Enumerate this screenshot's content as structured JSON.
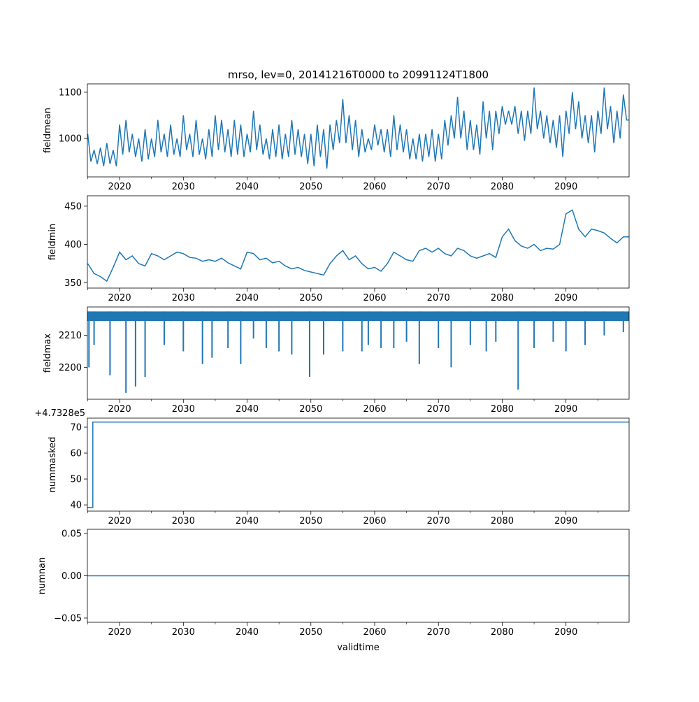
{
  "chart_data": [
    {
      "type": "line",
      "title": "mrso, lev=0, 20141216T0000 to 20991124T1800",
      "ylabel": "fieldmean",
      "xlim": [
        2014.95,
        2099.9
      ],
      "ylim": [
        917,
        1118
      ],
      "yticks": [
        1000,
        1100
      ],
      "x_start": 2015,
      "x_step": 0.5,
      "values": [
        1010,
        950,
        975,
        945,
        980,
        940,
        990,
        945,
        975,
        940,
        1030,
        965,
        1040,
        970,
        1010,
        960,
        1000,
        950,
        1020,
        955,
        1000,
        960,
        1040,
        970,
        1010,
        960,
        1030,
        965,
        1000,
        960,
        1050,
        975,
        1010,
        960,
        1040,
        965,
        1000,
        955,
        1020,
        960,
        1050,
        975,
        1040,
        970,
        1020,
        960,
        1040,
        965,
        1030,
        960,
        1010,
        970,
        1060,
        975,
        1030,
        965,
        1000,
        955,
        1020,
        960,
        1030,
        955,
        1010,
        960,
        1040,
        965,
        1020,
        960,
        1010,
        945,
        1010,
        940,
        1030,
        960,
        1020,
        935,
        1030,
        975,
        1040,
        990,
        1085,
        990,
        1050,
        975,
        1040,
        960,
        1020,
        970,
        1000,
        975,
        1030,
        985,
        1020,
        970,
        1020,
        960,
        1050,
        975,
        1030,
        970,
        1020,
        955,
        1000,
        955,
        1010,
        950,
        1010,
        960,
        1020,
        950,
        1010,
        955,
        1040,
        985,
        1050,
        1000,
        1090,
        1000,
        1060,
        975,
        1040,
        975,
        1030,
        965,
        1080,
        1000,
        1060,
        975,
        1060,
        1010,
        1070,
        1030,
        1060,
        1030,
        1070,
        1010,
        1060,
        995,
        1060,
        1010,
        1110,
        1020,
        1060,
        1000,
        1050,
        990,
        1040,
        980,
        1050,
        960,
        1060,
        1010,
        1100,
        1020,
        1080,
        1000,
        1050,
        990,
        1050,
        970,
        1060,
        1010,
        1110,
        1020,
        1070,
        990,
        1060,
        1000,
        1095,
        1040
      ]
    },
    {
      "type": "line",
      "ylabel": "fieldmin",
      "xlim": [
        2014.95,
        2099.9
      ],
      "ylim": [
        343,
        463.6
      ],
      "yticks": [
        350,
        400,
        450
      ],
      "x_start": 2015,
      "x_step": 1,
      "values": [
        375,
        362,
        358,
        352,
        370,
        390,
        380,
        385,
        375,
        372,
        388,
        385,
        380,
        385,
        390,
        388,
        383,
        382,
        378,
        380,
        378,
        382,
        376,
        372,
        368,
        390,
        388,
        380,
        382,
        376,
        378,
        372,
        368,
        370,
        366,
        364,
        362,
        360,
        375,
        385,
        392,
        380,
        385,
        375,
        368,
        370,
        365,
        375,
        390,
        385,
        380,
        378,
        392,
        395,
        390,
        395,
        388,
        385,
        395,
        392,
        385,
        382,
        385,
        388,
        383,
        410,
        420,
        405,
        398,
        395,
        400,
        392,
        395,
        394,
        400,
        440,
        445,
        420,
        410,
        420,
        418,
        415,
        408,
        402,
        410
      ]
    },
    {
      "type": "line",
      "ylabel": "fieldmax",
      "xlim": [
        2014.95,
        2099.9
      ],
      "ylim": [
        2190,
        2218.9
      ],
      "yticks": [
        2200,
        2210
      ],
      "upper": 2217.5,
      "band_floor": 2214.5,
      "dips": [
        [
          2015.2,
          2200
        ],
        [
          2016,
          2207
        ],
        [
          2018.5,
          2197.5
        ],
        [
          2021,
          2192
        ],
        [
          2022.5,
          2194
        ],
        [
          2024,
          2197
        ],
        [
          2027,
          2207
        ],
        [
          2030,
          2205
        ],
        [
          2033,
          2201
        ],
        [
          2034.5,
          2203
        ],
        [
          2037,
          2206
        ],
        [
          2039,
          2201
        ],
        [
          2041,
          2209
        ],
        [
          2043,
          2206
        ],
        [
          2045,
          2205
        ],
        [
          2047,
          2204
        ],
        [
          2049.8,
          2197
        ],
        [
          2052,
          2204
        ],
        [
          2055,
          2205
        ],
        [
          2058,
          2205
        ],
        [
          2059,
          2207
        ],
        [
          2061,
          2206
        ],
        [
          2063,
          2206
        ],
        [
          2065,
          2208
        ],
        [
          2067,
          2201
        ],
        [
          2070,
          2206
        ],
        [
          2072,
          2200
        ],
        [
          2075,
          2207
        ],
        [
          2077.5,
          2205
        ],
        [
          2079,
          2208
        ],
        [
          2082.5,
          2193
        ],
        [
          2085,
          2206
        ],
        [
          2088,
          2208
        ],
        [
          2090,
          2205
        ],
        [
          2093,
          2207
        ],
        [
          2096,
          2210
        ],
        [
          2099,
          2211
        ]
      ]
    },
    {
      "type": "line",
      "ylabel": "nummasked",
      "offset_text": "+4.7328e5",
      "xlim": [
        2014.95,
        2099.9
      ],
      "ylim": [
        37.6,
        73.5
      ],
      "yticks": [
        40,
        50,
        60,
        70
      ],
      "step_points": [
        [
          2014.95,
          39
        ],
        [
          2015.8,
          39
        ],
        [
          2015.8,
          72
        ],
        [
          2099.9,
          72
        ]
      ]
    },
    {
      "type": "line",
      "ylabel": "numnan",
      "xlabel": "validtime",
      "xlim": [
        2014.95,
        2099.9
      ],
      "ylim": [
        -0.055,
        0.055
      ],
      "yticks": [
        -0.05,
        0.0,
        0.05
      ],
      "ytick_labels": [
        "−0.05",
        "0.00",
        "0.05"
      ],
      "step_points": [
        [
          2014.95,
          0
        ],
        [
          2099.9,
          0
        ]
      ]
    }
  ],
  "xticks": [
    2020,
    2030,
    2040,
    2050,
    2060,
    2070,
    2080,
    2090
  ],
  "xminor": [
    2015,
    2025,
    2035,
    2045,
    2055,
    2065,
    2075,
    2085,
    2095
  ],
  "line_color": "#1f77b4"
}
